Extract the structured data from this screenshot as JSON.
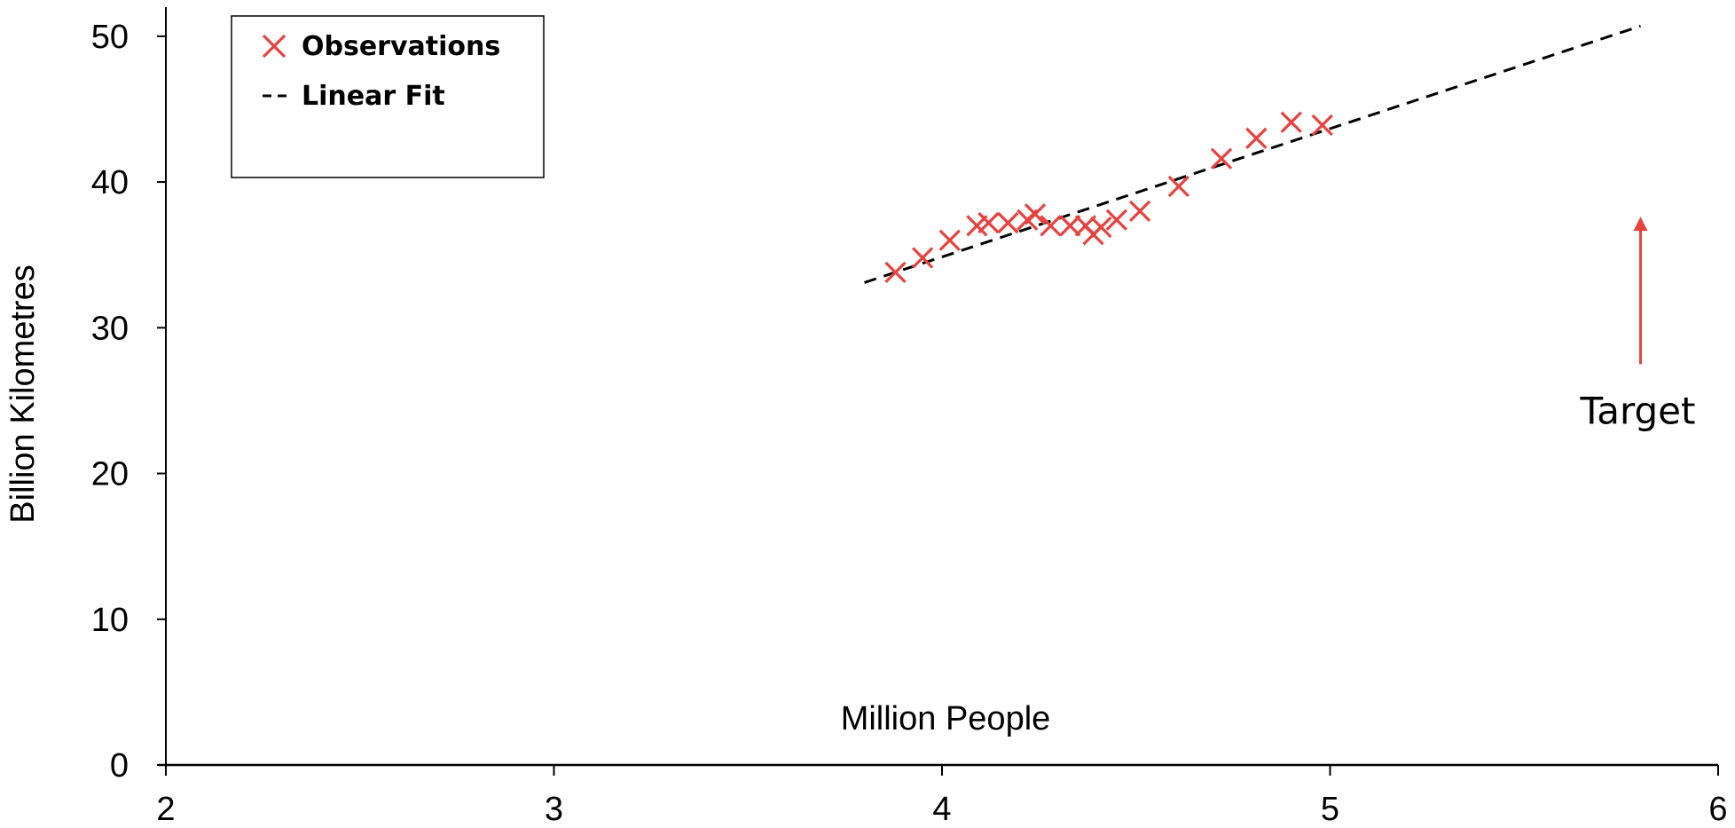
{
  "chart_data": {
    "type": "scatter",
    "xlabel": "Million People",
    "ylabel": "Billion Kilometres",
    "xlim": [
      2,
      6
    ],
    "ylim": [
      0,
      52
    ],
    "xticks": [
      2,
      3,
      4,
      5,
      6
    ],
    "yticks": [
      0,
      10,
      20,
      30,
      40,
      50
    ],
    "grid": false,
    "legend_placement": "top-left",
    "series": [
      {
        "name": "Observations",
        "marker": "x",
        "color": "#e8413e",
        "points": [
          {
            "x": 3.88,
            "y": 33.8
          },
          {
            "x": 3.95,
            "y": 34.8
          },
          {
            "x": 4.02,
            "y": 36.0
          },
          {
            "x": 4.09,
            "y": 37.0
          },
          {
            "x": 4.12,
            "y": 37.2
          },
          {
            "x": 4.17,
            "y": 37.2
          },
          {
            "x": 4.22,
            "y": 37.4
          },
          {
            "x": 4.24,
            "y": 37.8
          },
          {
            "x": 4.28,
            "y": 37.0
          },
          {
            "x": 4.33,
            "y": 37.0
          },
          {
            "x": 4.37,
            "y": 37.0
          },
          {
            "x": 4.39,
            "y": 36.4
          },
          {
            "x": 4.41,
            "y": 36.9
          },
          {
            "x": 4.45,
            "y": 37.4
          },
          {
            "x": 4.51,
            "y": 38.0
          },
          {
            "x": 4.61,
            "y": 39.7
          },
          {
            "x": 4.72,
            "y": 41.6
          },
          {
            "x": 4.81,
            "y": 43.0
          },
          {
            "x": 4.9,
            "y": 44.1
          },
          {
            "x": 4.98,
            "y": 43.9
          }
        ]
      },
      {
        "name": "Linear Fit",
        "style": "dashed",
        "color": "#000000",
        "x": [
          3.8,
          5.8
        ],
        "y": [
          33.1,
          50.7
        ]
      }
    ],
    "annotations": [
      {
        "text": "Target",
        "arrow_x": 5.8,
        "arrow_from_y": 27.5,
        "arrow_to_y": 37.5,
        "color": "#e8413e"
      }
    ]
  }
}
